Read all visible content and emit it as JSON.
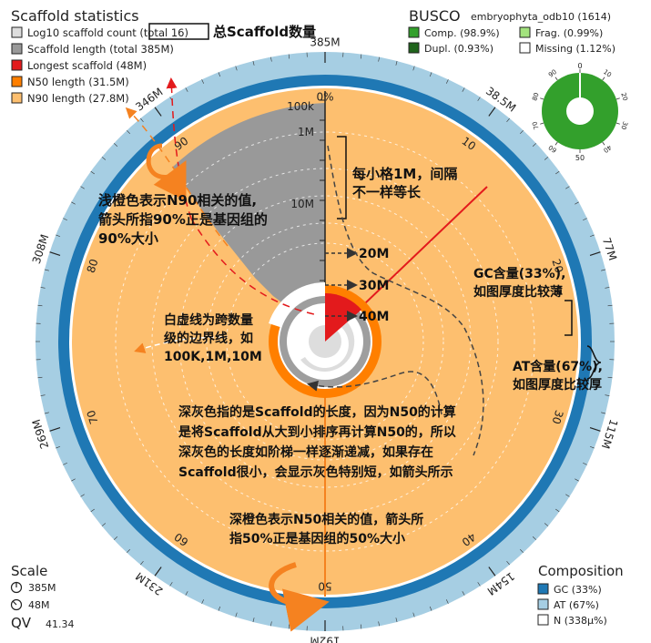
{
  "legend_left": {
    "title": "Scaffold statistics",
    "items": [
      {
        "label": "Log10 scaffold count (total 16)",
        "color": "#dddddd"
      },
      {
        "label": "Scaffold length (total 385M)",
        "color": "#999999"
      },
      {
        "label": "Longest scaffold (48M)",
        "color": "#e31a1c"
      },
      {
        "label": "N50 length (31.5M)",
        "color": "#ff7f00"
      },
      {
        "label": "N90 length (27.8M)",
        "color": "#fdbf6f"
      }
    ],
    "callout": "总Scaffold数量"
  },
  "legend_busco": {
    "title": "BUSCO",
    "dataset": "embryophyta_odb10 (1614)",
    "items": [
      {
        "label": "Comp. (98.9%)",
        "color": "#33a02c"
      },
      {
        "label": "Frag. (0.99%)",
        "color": "#a3e37e"
      },
      {
        "label": "Dupl. (0.93%)",
        "color": "#20641c"
      },
      {
        "label": "Missing (1.12%)",
        "color": "#ffffff"
      }
    ],
    "ticks": [
      "0",
      "10",
      "20",
      "30",
      "40",
      "50",
      "60",
      "70",
      "80",
      "90"
    ]
  },
  "scale": {
    "title": "Scale",
    "total": "385M",
    "longest": "48M",
    "qv_label": "QV",
    "qv_value": "41.34"
  },
  "composition": {
    "title": "Composition",
    "items": [
      {
        "label": "GC (33%)",
        "color": "#1f78b4"
      },
      {
        "label": "AT (67%)",
        "color": "#a6cee3"
      },
      {
        "label": "N (338μ%)",
        "color": "#ffffff"
      }
    ]
  },
  "outer_ticks": {
    "length": [
      "385M",
      "38.5M",
      "77M",
      "115M",
      "154M",
      "192M",
      "231M",
      "269M",
      "308M",
      "346M"
    ],
    "percent": [
      "0%",
      "10",
      "20",
      "30",
      "40",
      "50",
      "60",
      "70",
      "80",
      "90"
    ]
  },
  "radial_labels": [
    "100k",
    "1M",
    "10M"
  ],
  "chart_data": {
    "type": "snail",
    "total_length": "385M",
    "scaffold_count": 16,
    "longest_scaffold_M": 48,
    "n50_M": 31.5,
    "n90_M": 27.8,
    "gc_percent": 33,
    "at_percent": 67,
    "n_percent": "338μ%",
    "qv": 41.34,
    "busco": {
      "complete": 98.9,
      "fragmented": 0.99,
      "duplicated": 0.93,
      "missing": 1.12,
      "dataset": "embryophyta_odb10",
      "n": 1614
    }
  },
  "annotations": {
    "grid_note": [
      "每小格1M，间隔",
      "不一样等长"
    ],
    "m20": "20M",
    "m30": "30M",
    "m40": "40M",
    "gc": [
      "GC含量(33%),",
      "如图厚度比较薄"
    ],
    "at": [
      "AT含量(67%),",
      "如图厚度比较厚"
    ],
    "n90": [
      "浅橙色表示N90相关的值,",
      "箭头所指90%正是基因组的",
      "90%大小"
    ],
    "dashes": [
      "白虚线为跨数量",
      "级的边界线，如",
      "100K,1M,10M"
    ],
    "gray": [
      "深灰色指的是Scaffold的长度，因为N50的计算",
      "是将Scaffold从大到小排序再计算N50的，所以",
      "深灰色的长度如阶梯一样逐渐递减，如果存在",
      "Scaffold很小，会显示灰色特别短，如箭头所示"
    ],
    "n50": [
      "深橙色表示N50相关的值，箭头所",
      "指50%正是基因组的50%大小"
    ]
  }
}
